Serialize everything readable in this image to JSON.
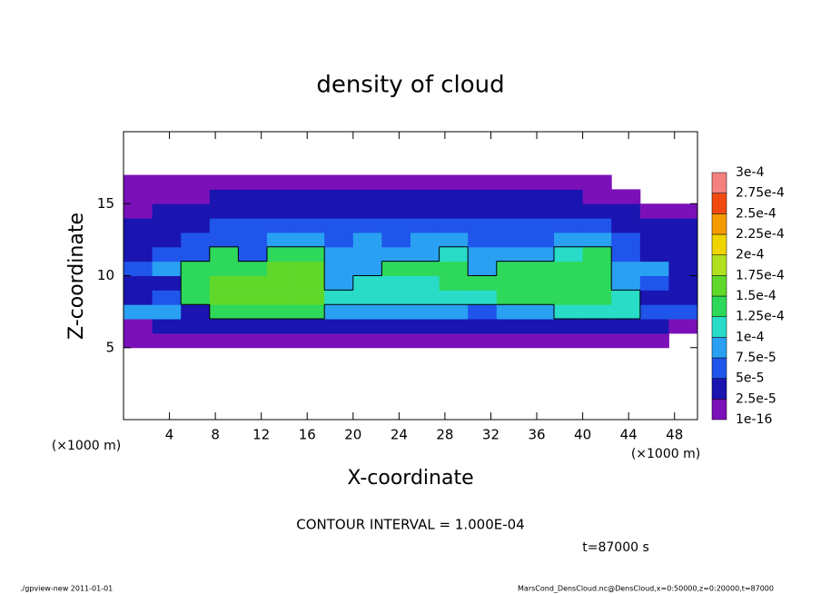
{
  "chart_data": {
    "type": "heatmap",
    "title": "density of cloud",
    "x_label": "X-coordinate",
    "y_label": "Z-coordinate",
    "x_unit": "(×1000 m)",
    "y_unit": "(×1000 m)",
    "annotation": "CONTOUR INTERVAL = 1.000E-04",
    "contour_level": 0.0001,
    "time_label": "t=87000 s",
    "footer_left": "./gpview-new   2011-01-01",
    "footer_right": "MarsCond_DensCloud.nc@DensCloud,x=0:50000,z=0:20000,t=87000",
    "xlim": [
      0,
      50
    ],
    "ylim": [
      0,
      20
    ],
    "xticks": [
      4,
      8,
      12,
      16,
      20,
      24,
      28,
      32,
      36,
      40,
      44,
      48
    ],
    "yticks": [
      5,
      10,
      15
    ],
    "x_edges": [
      0,
      2.5,
      5,
      7.5,
      10,
      12.5,
      15,
      17.5,
      20,
      22.5,
      25,
      27.5,
      30,
      32.5,
      35,
      37.5,
      40,
      42.5,
      45,
      47.5,
      50
    ],
    "z_edges": [
      5,
      6,
      7,
      8,
      9,
      10,
      11,
      12,
      13,
      14,
      15,
      16,
      17
    ],
    "z": [
      [
        1e-05,
        1e-05,
        1e-05,
        1e-05,
        1e-05,
        1e-05,
        1e-05,
        1e-05,
        1e-05,
        1e-05,
        1e-05,
        1e-05,
        1e-05,
        1e-05,
        1e-05,
        1e-05,
        1e-05,
        1e-05,
        1e-05,
        null
      ],
      [
        1e-05,
        4e-05,
        4e-05,
        4e-05,
        4e-05,
        4e-05,
        4e-05,
        4e-05,
        4e-05,
        4e-05,
        4e-05,
        4e-05,
        4e-05,
        4e-05,
        4e-05,
        4e-05,
        4e-05,
        4e-05,
        4e-05,
        1e-05
      ],
      [
        8e-05,
        8e-05,
        4e-05,
        0.00013,
        0.00013,
        0.00013,
        0.00013,
        8e-05,
        8e-05,
        8e-05,
        8e-05,
        8e-05,
        6e-05,
        8e-05,
        8e-05,
        0.00011,
        0.00011,
        0.00011,
        6e-05,
        6e-05
      ],
      [
        4e-05,
        6e-05,
        0.00013,
        0.00016,
        0.00016,
        0.00016,
        0.00016,
        0.00011,
        0.00011,
        0.00011,
        0.00011,
        0.00011,
        0.00011,
        0.00013,
        0.00013,
        0.00013,
        0.00013,
        0.00011,
        4e-05,
        4e-05
      ],
      [
        4e-05,
        4e-05,
        0.00013,
        0.00016,
        0.00016,
        0.00016,
        0.00016,
        8e-05,
        0.00011,
        0.00011,
        0.00011,
        0.00013,
        0.00013,
        0.00013,
        0.00013,
        0.00013,
        0.00013,
        8e-05,
        6e-05,
        4e-05
      ],
      [
        6e-05,
        8e-05,
        0.00013,
        0.00013,
        0.00013,
        0.00016,
        0.00016,
        8e-05,
        8e-05,
        0.00013,
        0.00013,
        0.00013,
        8e-05,
        0.00013,
        0.00013,
        0.00013,
        0.00013,
        8e-05,
        8e-05,
        4e-05
      ],
      [
        4e-05,
        6e-05,
        6e-05,
        0.00013,
        6e-05,
        0.00013,
        0.00013,
        8e-05,
        8e-05,
        8e-05,
        8e-05,
        0.00011,
        8e-05,
        8e-05,
        8e-05,
        0.00011,
        0.00013,
        6e-05,
        4e-05,
        4e-05
      ],
      [
        3e-05,
        4e-05,
        6e-05,
        6e-05,
        6e-05,
        8e-05,
        8e-05,
        6e-05,
        8e-05,
        6e-05,
        8e-05,
        8e-05,
        6e-05,
        6e-05,
        6e-05,
        8e-05,
        8e-05,
        6e-05,
        4e-05,
        3e-05
      ],
      [
        3e-05,
        4e-05,
        4e-05,
        6e-05,
        6e-05,
        6e-05,
        6e-05,
        6e-05,
        6e-05,
        6e-05,
        6e-05,
        6e-05,
        6e-05,
        6e-05,
        6e-05,
        6e-05,
        6e-05,
        4e-05,
        3e-05,
        3e-05
      ],
      [
        1e-05,
        3e-05,
        4e-05,
        4e-05,
        4e-05,
        4e-05,
        4e-05,
        4e-05,
        4e-05,
        4e-05,
        4e-05,
        4e-05,
        4e-05,
        4e-05,
        4e-05,
        4e-05,
        4e-05,
        3e-05,
        1e-05,
        1e-05
      ],
      [
        1e-05,
        1e-05,
        1e-05,
        3e-05,
        3e-05,
        3e-05,
        3e-05,
        3e-05,
        3e-05,
        3e-05,
        3e-05,
        3e-05,
        3e-05,
        3e-05,
        3e-05,
        3e-05,
        1e-05,
        1e-05,
        null,
        null
      ],
      [
        1e-05,
        1e-05,
        1e-05,
        1e-05,
        1e-05,
        1e-05,
        1e-05,
        1e-05,
        1e-05,
        1e-05,
        1e-05,
        1e-05,
        1e-05,
        1e-05,
        1e-05,
        1e-05,
        1e-05,
        null,
        null,
        null
      ]
    ],
    "colorbar_levels": [
      {
        "value": 1e-16,
        "label": "1e-16"
      },
      {
        "value": 2.5e-05,
        "label": "2.5e-5"
      },
      {
        "value": 5e-05,
        "label": "5e-5"
      },
      {
        "value": 7.5e-05,
        "label": "7.5e-5"
      },
      {
        "value": 0.0001,
        "label": "1e-4"
      },
      {
        "value": 0.000125,
        "label": "1.25e-4"
      },
      {
        "value": 0.00015,
        "label": "1.5e-4"
      },
      {
        "value": 0.000175,
        "label": "1.75e-4"
      },
      {
        "value": 0.0002,
        "label": "2e-4"
      },
      {
        "value": 0.000225,
        "label": "2.25e-4"
      },
      {
        "value": 0.00025,
        "label": "2.5e-4"
      },
      {
        "value": 0.000275,
        "label": "2.75e-4"
      },
      {
        "value": 0.0003,
        "label": "3e-4"
      }
    ],
    "colors": [
      "#7c10b8",
      "#1a14b0",
      "#1f55ea",
      "#2aa0f2",
      "#28dcc8",
      "#2ed85a",
      "#5fd82a",
      "#b0e020",
      "#f0d400",
      "#f59a00",
      "#f04a10",
      "#f58080"
    ]
  }
}
